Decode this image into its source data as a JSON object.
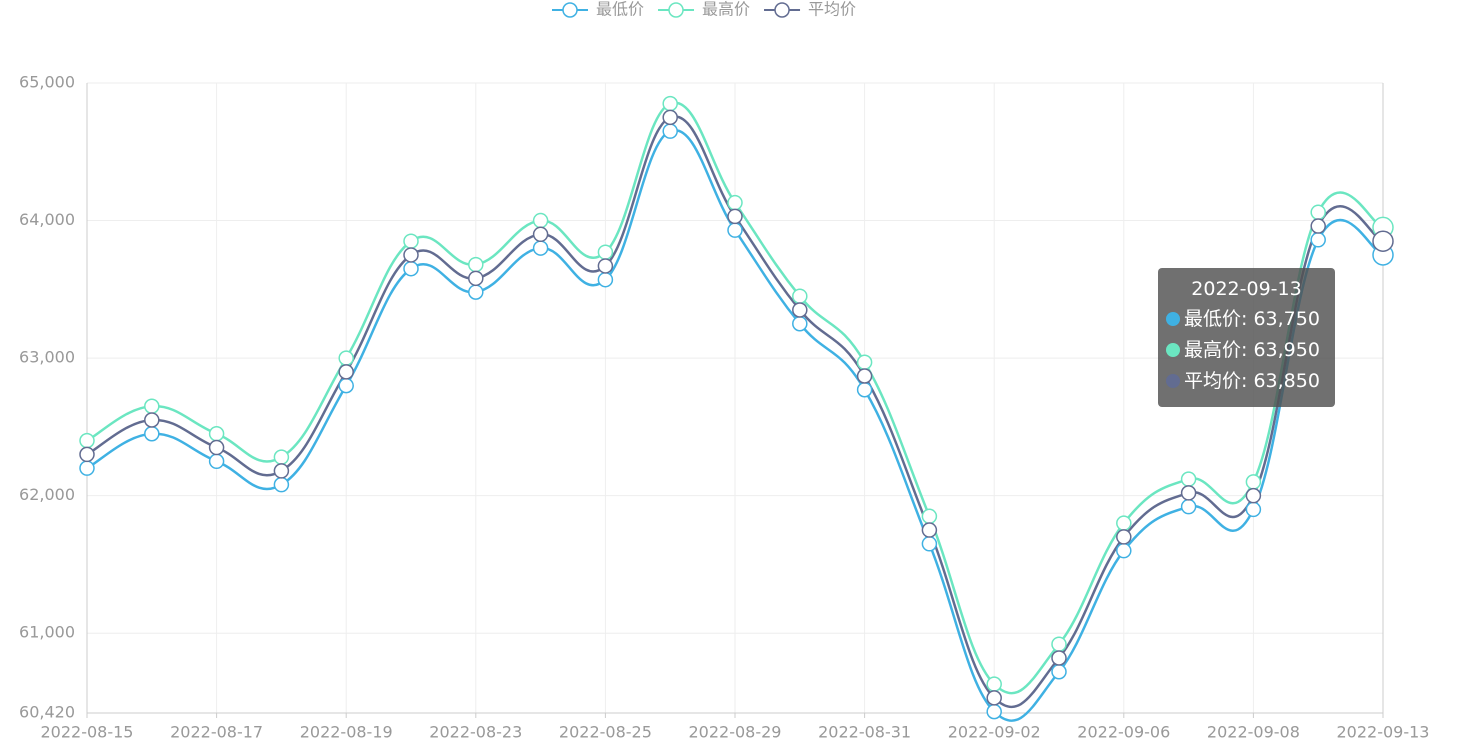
{
  "chart_data": {
    "type": "line",
    "categories": [
      "2022-08-15",
      null,
      "2022-08-17",
      null,
      "2022-08-19",
      null,
      "2022-08-23",
      null,
      "2022-08-25",
      null,
      "2022-08-29",
      null,
      "2022-08-31",
      null,
      "2022-09-02",
      null,
      "2022-09-06",
      null,
      "2022-09-08",
      null,
      "2022-09-13"
    ],
    "series": [
      {
        "name": "最低价",
        "color": "#3fb1e3",
        "values": [
          62200,
          62450,
          62250,
          62080,
          62800,
          63650,
          63480,
          63800,
          63570,
          64650,
          63930,
          63250,
          62770,
          61650,
          60430,
          60720,
          61600,
          61920,
          61900,
          63860,
          63750
        ]
      },
      {
        "name": "最高价",
        "color": "#6be6c1",
        "values": [
          62400,
          62650,
          62450,
          62280,
          63000,
          63850,
          63680,
          64000,
          63770,
          64850,
          64130,
          63450,
          62970,
          61850,
          60630,
          60920,
          61800,
          62120,
          62100,
          64060,
          63950
        ]
      },
      {
        "name": "平均价",
        "color": "#626c91",
        "values": [
          62300,
          62550,
          62350,
          62180,
          62900,
          63750,
          63580,
          63900,
          63670,
          64750,
          64030,
          63350,
          62870,
          61750,
          60530,
          60820,
          61700,
          62020,
          62000,
          63960,
          63850
        ]
      }
    ],
    "ylim": [
      60420,
      65000
    ],
    "yticks": [
      {
        "value": 60420,
        "label": "60,420"
      },
      {
        "value": 61000,
        "label": "61,000"
      },
      {
        "value": 62000,
        "label": "62,000"
      },
      {
        "value": 63000,
        "label": "63,000"
      },
      {
        "value": 64000,
        "label": "64,000"
      },
      {
        "value": 65000,
        "label": "65,000"
      }
    ],
    "grid": true,
    "smooth": true,
    "legend": "top",
    "tooltip": {
      "index": 20,
      "labels": [
        "63,750",
        "63,950",
        "63,850"
      ]
    }
  }
}
